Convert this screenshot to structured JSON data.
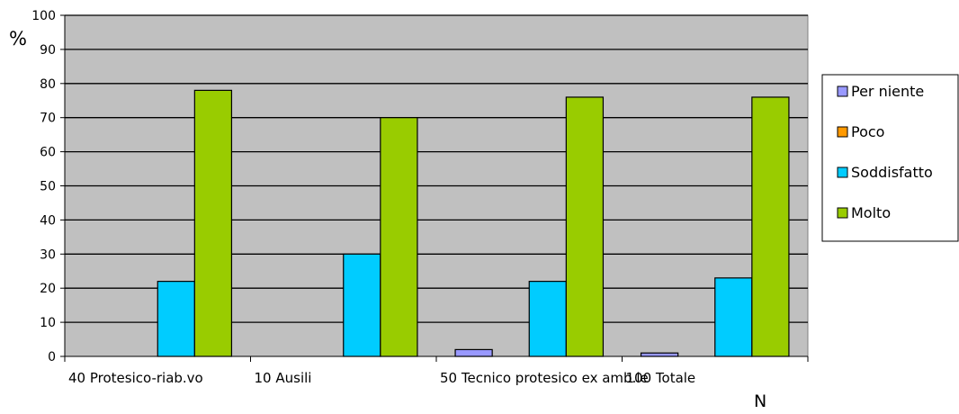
{
  "chart_data": {
    "type": "bar",
    "title": "",
    "ylabel": "%",
    "xlabel": "N",
    "ylim": [
      0,
      100
    ],
    "yticks": [
      0,
      10,
      20,
      30,
      40,
      50,
      60,
      70,
      80,
      90,
      100
    ],
    "grid": true,
    "legend_position": "right",
    "plot_background": "#c0c0c0",
    "categories": [
      "40 Protesico-riab.vo",
      "10 Ausili",
      "50 Tecnico protesico ex amb.le",
      "100 Totale"
    ],
    "series": [
      {
        "name": "Per niente",
        "color": "#9999ff",
        "values": [
          0,
          0,
          2,
          1
        ]
      },
      {
        "name": "Poco",
        "color": "#ff9900",
        "values": [
          0,
          0,
          0,
          0
        ]
      },
      {
        "name": "Soddisfatto",
        "color": "#00ccff",
        "values": [
          22,
          30,
          22,
          23
        ]
      },
      {
        "name": "Molto",
        "color": "#99cc00",
        "values": [
          78,
          70,
          76,
          76
        ]
      }
    ]
  }
}
